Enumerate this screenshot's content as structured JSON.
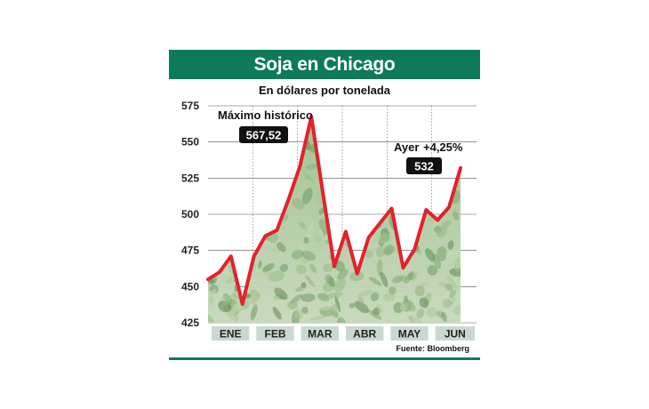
{
  "header": {
    "title": "Soja en Chicago",
    "subtitle": "En dólares por tonelada"
  },
  "footer": {
    "source": "Fuente: Bloomberg"
  },
  "colors": {
    "brand_green": "#0e7a5a",
    "line_red": "#e3222b",
    "month_box": "#c9d9cf",
    "annotation_box": "#111111"
  },
  "annotations": {
    "max_label": "Máximo histórico",
    "max_value": "567,52",
    "last_label": "Ayer",
    "last_change": "+4,25%",
    "last_value": "532"
  },
  "chart_data": {
    "type": "line",
    "title": "Soja en Chicago",
    "subtitle": "En dólares por tonelada",
    "xlabel": "",
    "ylabel": "",
    "ylim": [
      425,
      575
    ],
    "yticks": [
      425,
      450,
      475,
      500,
      525,
      550,
      575
    ],
    "grid": true,
    "months": [
      "ENE",
      "FEB",
      "MAR",
      "ABR",
      "MAY",
      "JUN"
    ],
    "series": [
      {
        "values": [
          455,
          460,
          471,
          438,
          471,
          485,
          489,
          510,
          533,
          567.52,
          515,
          464,
          488,
          459,
          484,
          494,
          504,
          463,
          476,
          503,
          496,
          505,
          532
        ]
      }
    ]
  }
}
